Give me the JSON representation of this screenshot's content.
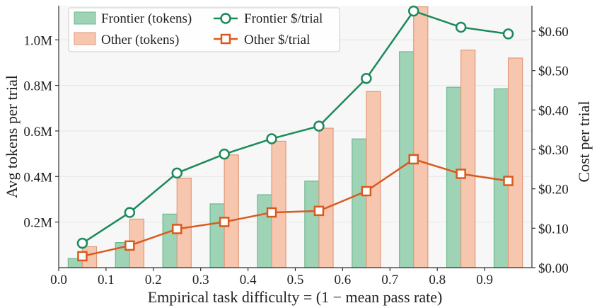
{
  "chart_data": {
    "type": "bar+line",
    "xlabel": "Empirical task difficulty = (1 − mean pass rate)",
    "ylabel_left": "Avg tokens per trial",
    "ylabel_right": "Cost per trial",
    "xlim": [
      0.0,
      1.0
    ],
    "ylim_left": [
      0,
      1150000
    ],
    "ylim_right": [
      0.0,
      0.6647
    ],
    "x_ticks": [
      "0.0",
      "0.1",
      "0.2",
      "0.3",
      "0.4",
      "0.5",
      "0.6",
      "0.7",
      "0.8",
      "0.9"
    ],
    "y_left_ticks": [
      "0.2M",
      "0.4M",
      "0.6M",
      "0.8M",
      "1.0M"
    ],
    "y_right_ticks": [
      "$0.00",
      "$0.10",
      "$0.20",
      "$0.30",
      "$0.40",
      "$0.50",
      "$0.60"
    ],
    "grid": "horizontal",
    "legend_placement": "top-left",
    "x": [
      0.05,
      0.15,
      0.25,
      0.35,
      0.45,
      0.55,
      0.65,
      0.75,
      0.85,
      0.95
    ],
    "series": [
      {
        "name": "Frontier (tokens)",
        "kind": "bar",
        "axis": "left",
        "color": "#9fd3b6",
        "edge": "#6db890",
        "values": [
          40000,
          110000,
          235000,
          280000,
          320000,
          380000,
          565000,
          948000,
          792000,
          785000
        ]
      },
      {
        "name": "Other (tokens)",
        "kind": "bar",
        "axis": "left",
        "color": "#f7c6ae",
        "edge": "#e09a7c",
        "values": [
          92000,
          213000,
          393000,
          495000,
          555000,
          612000,
          773000,
          1145000,
          955000,
          920000
        ]
      },
      {
        "name": "Frontier $/trial",
        "kind": "line",
        "axis": "right",
        "color": "#1b8a5a",
        "marker": "circle",
        "values": [
          0.062,
          0.14,
          0.24,
          0.288,
          0.327,
          0.359,
          0.48,
          0.651,
          0.61,
          0.593
        ]
      },
      {
        "name": "Other $/trial",
        "kind": "line",
        "axis": "right",
        "color": "#d95a1e",
        "marker": "square",
        "values": [
          0.029,
          0.056,
          0.098,
          0.116,
          0.14,
          0.144,
          0.194,
          0.275,
          0.238,
          0.22
        ]
      }
    ]
  }
}
